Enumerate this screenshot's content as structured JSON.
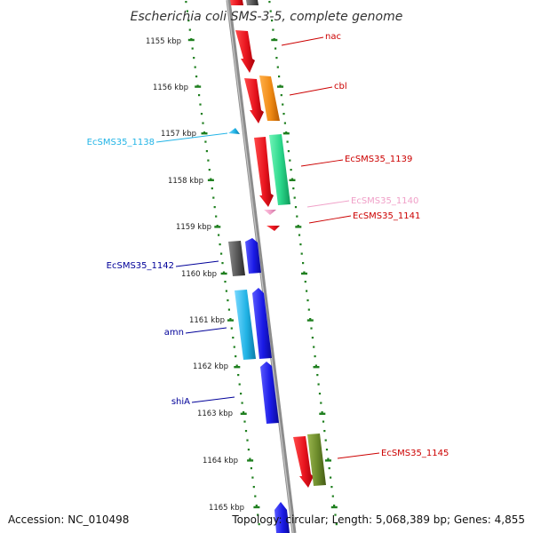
{
  "title": "Escherichia coli SMS-3-5, complete genome",
  "footer": {
    "accession": "Accession: NC_010498",
    "topology": "Topology: circular; Length: 5,068,389 bp; Genes: 4,855"
  },
  "colors": {
    "backbone": "#8c8c8c",
    "tick_dots": "#1f7f1f",
    "red": "#e8141e",
    "orange": "#f08a14",
    "green": "#2ad68a",
    "olive": "#6b8a2a",
    "gray": "#555555",
    "blue": "#1a1ae6",
    "cyan": "#22b4e6",
    "pink": "#f0a0c8",
    "label_red": "#cc0000",
    "label_blue": "#000099",
    "label_cyan": "#22b4e6",
    "label_pink": "#f0a0c8"
  },
  "ticks": [
    {
      "label": "1155 kbp"
    },
    {
      "label": "1156 kbp"
    },
    {
      "label": "1157 kbp"
    },
    {
      "label": "1158 kbp"
    },
    {
      "label": "1159 kbp"
    },
    {
      "label": "1160 kbp"
    },
    {
      "label": "1161 kbp"
    },
    {
      "label": "1162 kbp"
    },
    {
      "label": "1163 kbp"
    },
    {
      "label": "1164 kbp"
    },
    {
      "label": "1165 kbp"
    }
  ],
  "gene_labels": [
    {
      "text": "nac",
      "color": "label_red"
    },
    {
      "text": "cbl",
      "color": "label_red"
    },
    {
      "text": "EcSMS35_1138",
      "color": "label_cyan"
    },
    {
      "text": "EcSMS35_1139",
      "color": "label_red"
    },
    {
      "text": "EcSMS35_1140",
      "color": "label_pink"
    },
    {
      "text": "EcSMS35_1141",
      "color": "label_red"
    },
    {
      "text": "EcSMS35_1142",
      "color": "label_blue"
    },
    {
      "text": "amn",
      "color": "label_blue"
    },
    {
      "text": "shiA",
      "color": "label_blue"
    },
    {
      "text": "EcSMS35_1145",
      "color": "label_red"
    }
  ]
}
